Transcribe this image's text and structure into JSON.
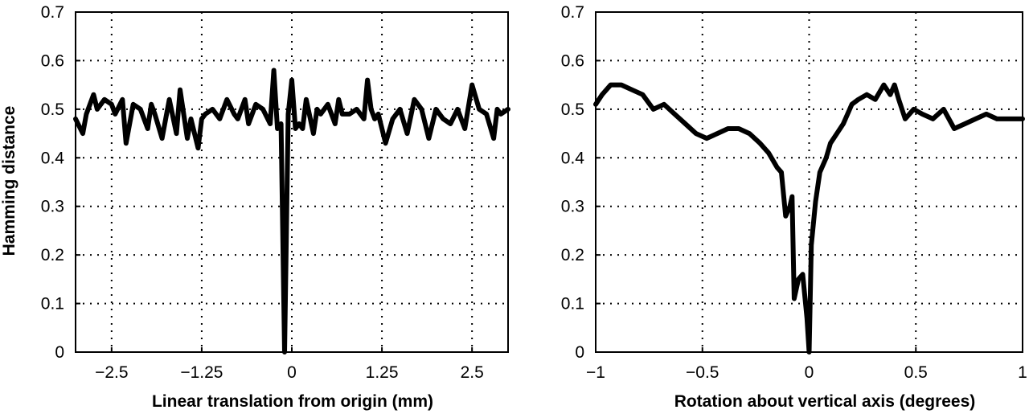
{
  "chart_data": [
    {
      "type": "line",
      "title": "",
      "xlabel": "Linear translation from origin (mm)",
      "ylabel": "Hamming distance",
      "xlim": [
        -3.0,
        3.0
      ],
      "ylim": [
        0,
        0.7
      ],
      "grid": true,
      "x_ticks": [
        -2.5,
        -1.25,
        0,
        1.25,
        2.5
      ],
      "x_tick_labels": [
        "−2.5",
        "−1.25",
        "0",
        "1.25",
        "2.5"
      ],
      "y_ticks": [
        0,
        0.1,
        0.2,
        0.3,
        0.4,
        0.5,
        0.6,
        0.7
      ],
      "y_tick_labels": [
        "0",
        "0.1",
        "0.2",
        "0.3",
        "0.4",
        "0.5",
        "0.6",
        "0.7"
      ],
      "series": [
        {
          "x": [
            -3.0,
            -2.9,
            -2.85,
            -2.75,
            -2.7,
            -2.6,
            -2.5,
            -2.45,
            -2.35,
            -2.3,
            -2.2,
            -2.1,
            -2.0,
            -1.95,
            -1.9,
            -1.8,
            -1.7,
            -1.6,
            -1.55,
            -1.45,
            -1.4,
            -1.3,
            -1.25,
            -1.2,
            -1.1,
            -1.0,
            -0.9,
            -0.8,
            -0.75,
            -0.65,
            -0.6,
            -0.5,
            -0.4,
            -0.3,
            -0.25,
            -0.2,
            -0.15,
            -0.1,
            -0.05,
            0.0,
            0.05,
            0.1,
            0.15,
            0.2,
            0.3,
            0.35,
            0.4,
            0.5,
            0.6,
            0.65,
            0.7,
            0.8,
            0.9,
            1.0,
            1.05,
            1.1,
            1.15,
            1.2,
            1.3,
            1.4,
            1.5,
            1.6,
            1.7,
            1.8,
            1.9,
            2.0,
            2.1,
            2.2,
            2.3,
            2.4,
            2.5,
            2.6,
            2.7,
            2.8,
            2.85,
            2.9,
            3.0
          ],
          "values": [
            0.48,
            0.45,
            0.49,
            0.53,
            0.5,
            0.52,
            0.51,
            0.49,
            0.52,
            0.43,
            0.51,
            0.5,
            0.46,
            0.51,
            0.49,
            0.44,
            0.52,
            0.45,
            0.54,
            0.44,
            0.48,
            0.42,
            0.48,
            0.49,
            0.5,
            0.48,
            0.52,
            0.49,
            0.48,
            0.52,
            0.47,
            0.51,
            0.5,
            0.47,
            0.58,
            0.46,
            0.47,
            0.0,
            0.49,
            0.56,
            0.46,
            0.47,
            0.46,
            0.52,
            0.45,
            0.5,
            0.49,
            0.51,
            0.47,
            0.52,
            0.49,
            0.49,
            0.5,
            0.48,
            0.56,
            0.5,
            0.48,
            0.49,
            0.43,
            0.48,
            0.5,
            0.45,
            0.52,
            0.5,
            0.44,
            0.5,
            0.48,
            0.47,
            0.5,
            0.46,
            0.55,
            0.5,
            0.49,
            0.44,
            0.5,
            0.49,
            0.5
          ]
        }
      ]
    },
    {
      "type": "line",
      "title": "",
      "xlabel": "Rotation about vertical axis (degrees)",
      "ylabel": "",
      "xlim": [
        -1.0,
        1.0
      ],
      "ylim": [
        0,
        0.7
      ],
      "grid": true,
      "x_ticks": [
        -1,
        -0.5,
        0,
        0.5,
        1
      ],
      "x_tick_labels": [
        "−1",
        "−0.5",
        "0",
        "0.5",
        "1"
      ],
      "y_ticks": [
        0,
        0.1,
        0.2,
        0.3,
        0.4,
        0.5,
        0.6,
        0.7
      ],
      "y_tick_labels": [
        "0",
        "0.1",
        "0.2",
        "0.3",
        "0.4",
        "0.5",
        "0.6",
        "0.7"
      ],
      "series": [
        {
          "x": [
            -1.0,
            -0.97,
            -0.93,
            -0.88,
            -0.83,
            -0.78,
            -0.73,
            -0.68,
            -0.63,
            -0.58,
            -0.53,
            -0.48,
            -0.43,
            -0.38,
            -0.33,
            -0.28,
            -0.23,
            -0.19,
            -0.15,
            -0.13,
            -0.11,
            -0.09,
            -0.08,
            -0.07,
            -0.05,
            -0.03,
            -0.01,
            0.0,
            0.01,
            0.03,
            0.05,
            0.08,
            0.1,
            0.13,
            0.16,
            0.18,
            0.2,
            0.23,
            0.27,
            0.31,
            0.35,
            0.38,
            0.4,
            0.42,
            0.45,
            0.49,
            0.53,
            0.58,
            0.63,
            0.68,
            0.73,
            0.78,
            0.83,
            0.88,
            0.93,
            0.97,
            1.0
          ],
          "values": [
            0.51,
            0.53,
            0.55,
            0.55,
            0.54,
            0.53,
            0.5,
            0.51,
            0.49,
            0.47,
            0.45,
            0.44,
            0.45,
            0.46,
            0.46,
            0.45,
            0.43,
            0.41,
            0.38,
            0.37,
            0.28,
            0.3,
            0.32,
            0.11,
            0.15,
            0.16,
            0.07,
            0.0,
            0.22,
            0.31,
            0.37,
            0.4,
            0.43,
            0.45,
            0.47,
            0.49,
            0.51,
            0.52,
            0.53,
            0.52,
            0.55,
            0.53,
            0.55,
            0.52,
            0.48,
            0.5,
            0.49,
            0.48,
            0.5,
            0.46,
            0.47,
            0.48,
            0.49,
            0.48,
            0.48,
            0.48,
            0.48
          ]
        }
      ]
    }
  ]
}
